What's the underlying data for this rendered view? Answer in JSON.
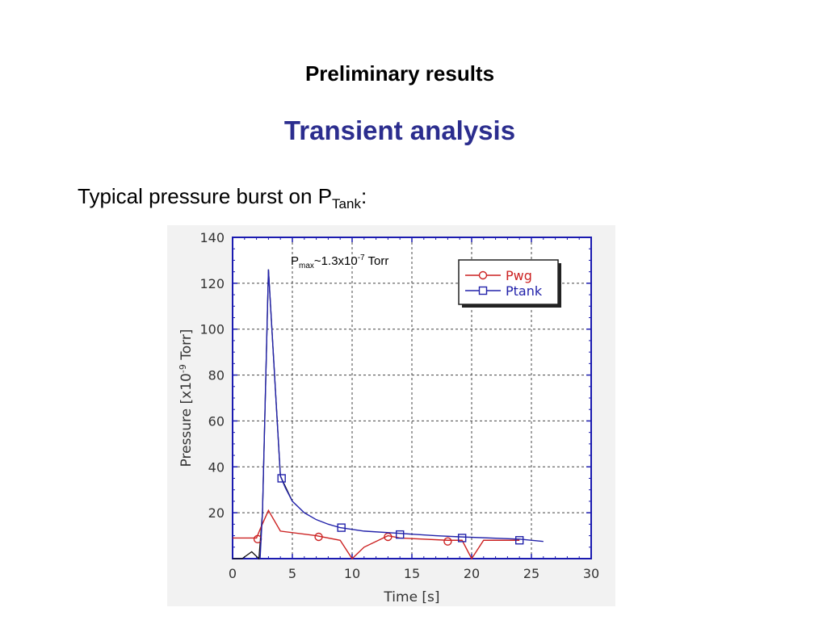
{
  "slide": {
    "heading": "Preliminary results",
    "subheading": "Transient analysis",
    "lead_text": "Typical pressure burst on P",
    "lead_subscript": "Tank",
    "lead_suffix": ":"
  },
  "chart_data": {
    "type": "line",
    "title": "",
    "xlabel": "Time [s]",
    "ylabel": "Pressure [x10-9 Torr]",
    "ylabel_base": "Pressure [x10",
    "ylabel_exp": "-9",
    "ylabel_unit": " Torr]",
    "xlim": [
      0,
      30
    ],
    "ylim": [
      0,
      140
    ],
    "x_ticks": [
      0,
      5,
      10,
      15,
      20,
      25,
      30
    ],
    "y_ticks": [
      20,
      40,
      60,
      80,
      100,
      120,
      140
    ],
    "grid": true,
    "legend_position": "top-right",
    "annotation": {
      "base": "P",
      "sub": "max",
      "text": "~1.3x10",
      "sup": "-7",
      "suffix": " Torr"
    },
    "series": [
      {
        "name": "Pwg",
        "color": "#cc2222",
        "marker": "circle",
        "x": [
          0,
          2,
          2.4,
          3,
          4,
          7,
          9,
          10,
          11,
          13,
          14,
          18,
          19.2,
          20,
          21,
          24
        ],
        "y": [
          9,
          9,
          14,
          21,
          12,
          10,
          8,
          0,
          5,
          10,
          9,
          8,
          8,
          0,
          8,
          8
        ],
        "marker_x": [
          2.1,
          7.2,
          13,
          18
        ],
        "marker_y": [
          8.5,
          9.5,
          9.5,
          7.5
        ]
      },
      {
        "name": "Ptank",
        "color": "#2222aa",
        "marker": "square",
        "x": [
          2.3,
          2.5,
          3,
          4,
          4.4,
          5,
          6,
          7,
          8,
          9,
          11,
          14,
          17,
          19,
          24,
          26
        ],
        "y": [
          0,
          20,
          126,
          36,
          31,
          25,
          20,
          17,
          15,
          13.5,
          12,
          11,
          10,
          9.5,
          8.5,
          7.5
        ],
        "marker_x": [
          4.1,
          9.1,
          14,
          19.2,
          24
        ],
        "marker_y": [
          35,
          13.5,
          10.5,
          9,
          8
        ]
      }
    ],
    "extra_black_line": {
      "x": [
        0,
        0.8,
        1.6,
        2.2,
        2.5,
        3,
        4,
        5
      ],
      "y": [
        0,
        0,
        3,
        0,
        20,
        126,
        36,
        25
      ]
    }
  }
}
